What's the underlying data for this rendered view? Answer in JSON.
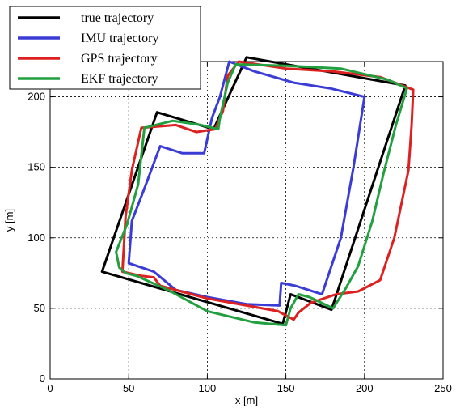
{
  "chart_data": {
    "type": "line",
    "title": "",
    "xlabel": "x [m]",
    "ylabel": "y [m]",
    "xlim": [
      0,
      250
    ],
    "ylim": [
      0,
      225
    ],
    "xticks": [
      0,
      50,
      100,
      150,
      200,
      250
    ],
    "yticks": [
      0,
      50,
      100,
      150,
      200
    ],
    "grid": true,
    "legend_position": "top-left",
    "series": [
      {
        "name": "true trajectory",
        "color": "#000000",
        "points": [
          [
            33,
            76
          ],
          [
            68,
            189
          ],
          [
            104,
            177
          ],
          [
            125,
            228
          ],
          [
            226,
            208
          ],
          [
            179,
            49
          ],
          [
            153,
            60
          ],
          [
            148,
            39
          ],
          [
            33,
            76
          ]
        ]
      },
      {
        "name": "IMU trajectory",
        "color": "#3b3bd6",
        "points": [
          [
            66,
            76
          ],
          [
            50,
            82
          ],
          [
            52,
            112
          ],
          [
            60,
            135
          ],
          [
            70,
            165
          ],
          [
            84,
            160
          ],
          [
            98,
            160
          ],
          [
            103,
            185
          ],
          [
            108,
            200
          ],
          [
            114,
            225
          ],
          [
            130,
            218
          ],
          [
            155,
            210
          ],
          [
            178,
            206
          ],
          [
            200,
            200
          ],
          [
            193,
            150
          ],
          [
            185,
            100
          ],
          [
            173,
            60
          ],
          [
            156,
            66
          ],
          [
            147,
            68
          ],
          [
            146,
            52
          ],
          [
            125,
            53
          ],
          [
            100,
            58
          ],
          [
            80,
            63
          ],
          [
            66,
            76
          ]
        ]
      },
      {
        "name": "GPS trajectory",
        "color": "#dd2020",
        "points": [
          [
            66,
            72
          ],
          [
            58,
            73
          ],
          [
            46,
            76
          ],
          [
            48,
            115
          ],
          [
            52,
            148
          ],
          [
            58,
            178
          ],
          [
            80,
            180
          ],
          [
            93,
            175
          ],
          [
            105,
            177
          ],
          [
            110,
            190
          ],
          [
            113,
            215
          ],
          [
            120,
            225
          ],
          [
            150,
            220
          ],
          [
            180,
            218
          ],
          [
            210,
            214
          ],
          [
            231,
            205
          ],
          [
            230,
            180
          ],
          [
            228,
            148
          ],
          [
            219,
            100
          ],
          [
            210,
            70
          ],
          [
            196,
            62
          ],
          [
            182,
            60
          ],
          [
            166,
            54
          ],
          [
            158,
            47
          ],
          [
            155,
            42
          ],
          [
            145,
            48
          ],
          [
            125,
            52
          ],
          [
            100,
            57
          ],
          [
            70,
            66
          ],
          [
            66,
            72
          ]
        ]
      },
      {
        "name": "EKF trajectory",
        "color": "#22a040",
        "points": [
          [
            48,
            75
          ],
          [
            44,
            79
          ],
          [
            42,
            90
          ],
          [
            49,
            110
          ],
          [
            56,
            138
          ],
          [
            60,
            178
          ],
          [
            78,
            183
          ],
          [
            96,
            180
          ],
          [
            107,
            177
          ],
          [
            108,
            185
          ],
          [
            113,
            210
          ],
          [
            118,
            223
          ],
          [
            150,
            222
          ],
          [
            185,
            220
          ],
          [
            215,
            212
          ],
          [
            227,
            206
          ],
          [
            220,
            180
          ],
          [
            212,
            145
          ],
          [
            205,
            112
          ],
          [
            196,
            80
          ],
          [
            188,
            64
          ],
          [
            180,
            50
          ],
          [
            165,
            58
          ],
          [
            158,
            60
          ],
          [
            153,
            50
          ],
          [
            150,
            38
          ],
          [
            130,
            40
          ],
          [
            100,
            48
          ],
          [
            75,
            63
          ],
          [
            55,
            73
          ],
          [
            48,
            75
          ]
        ]
      }
    ]
  }
}
